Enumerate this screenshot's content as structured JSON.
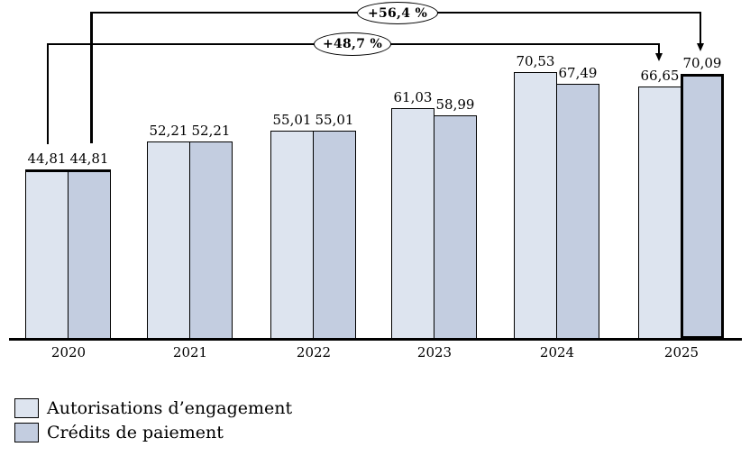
{
  "chart_data": {
    "type": "bar",
    "title": "",
    "xlabel": "",
    "ylabel": "",
    "categories": [
      "2020",
      "2021",
      "2022",
      "2023",
      "2024",
      "2025"
    ],
    "series": [
      {
        "name": "Autorisations d’engagement",
        "color": "#dde4ef",
        "values": [
          44.81,
          52.21,
          55.01,
          61.03,
          70.53,
          66.65
        ],
        "labels": [
          "44,81",
          "52,21",
          "55,01",
          "61,03",
          "70,53",
          "66,65"
        ]
      },
      {
        "name": "Crédits de paiement",
        "color": "#c3cde0",
        "values": [
          44.81,
          52.21,
          55.01,
          58.99,
          67.49,
          70.09
        ],
        "labels": [
          "44,81",
          "52,21",
          "55,01",
          "58,99",
          "67,49",
          "70,09"
        ]
      }
    ],
    "annotations": [
      {
        "label": "+56,4 %",
        "series": "Crédits de paiement",
        "from_category": "2020",
        "to_category": "2025"
      },
      {
        "label": "+48,7 %",
        "series": "Autorisations d’engagement",
        "from_category": "2020",
        "to_category": "2025"
      }
    ],
    "ylim": [
      0,
      90
    ],
    "grid": false,
    "legend_position": "bottom-left",
    "emphasis": {
      "bold_top_border_categories": [
        "2020"
      ],
      "bold_full_border_bar": {
        "category": "2025",
        "series": "Crédits de paiement"
      }
    }
  }
}
